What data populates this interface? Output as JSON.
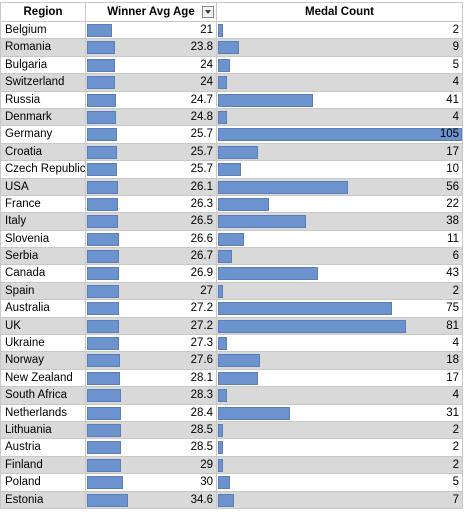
{
  "columns": {
    "region": "Region",
    "age": "Winner Avg Age",
    "medal": "Medal Count"
  },
  "bar_color": "#6c93cd",
  "stripe_color": "#d9d9d9",
  "rows": [
    {
      "region": "Belgium",
      "age": "21",
      "medal": "2"
    },
    {
      "region": "Romania",
      "age": "23.8",
      "medal": "9"
    },
    {
      "region": "Bulgaria",
      "age": "24",
      "medal": "5"
    },
    {
      "region": "Switzerland",
      "age": "24",
      "medal": "4"
    },
    {
      "region": "Russia",
      "age": "24.7",
      "medal": "41"
    },
    {
      "region": "Denmark",
      "age": "24.8",
      "medal": "4"
    },
    {
      "region": "Germany",
      "age": "25.7",
      "medal": "105"
    },
    {
      "region": "Croatia",
      "age": "25.7",
      "medal": "17"
    },
    {
      "region": "Czech Republic",
      "age": "25.7",
      "medal": "10"
    },
    {
      "region": "USA",
      "age": "26.1",
      "medal": "56"
    },
    {
      "region": "France",
      "age": "26.3",
      "medal": "22"
    },
    {
      "region": "Italy",
      "age": "26.5",
      "medal": "38"
    },
    {
      "region": "Slovenia",
      "age": "26.6",
      "medal": "11"
    },
    {
      "region": "Serbia",
      "age": "26.7",
      "medal": "6"
    },
    {
      "region": "Canada",
      "age": "26.9",
      "medal": "43"
    },
    {
      "region": "Spain",
      "age": "27",
      "medal": "2"
    },
    {
      "region": "Australia",
      "age": "27.2",
      "medal": "75"
    },
    {
      "region": "UK",
      "age": "27.2",
      "medal": "81"
    },
    {
      "region": "Ukraine",
      "age": "27.3",
      "medal": "4"
    },
    {
      "region": "Norway",
      "age": "27.6",
      "medal": "18"
    },
    {
      "region": "New Zealand",
      "age": "28.1",
      "medal": "17"
    },
    {
      "region": "South Africa",
      "age": "28.3",
      "medal": "4"
    },
    {
      "region": "Netherlands",
      "age": "28.4",
      "medal": "31"
    },
    {
      "region": "Lithuania",
      "age": "28.5",
      "medal": "2"
    },
    {
      "region": "Austria",
      "age": "28.5",
      "medal": "2"
    },
    {
      "region": "Finland",
      "age": "29",
      "medal": "2"
    },
    {
      "region": "Poland",
      "age": "30",
      "medal": "5"
    },
    {
      "region": "Estonia",
      "age": "34.6",
      "medal": "7"
    }
  ]
}
